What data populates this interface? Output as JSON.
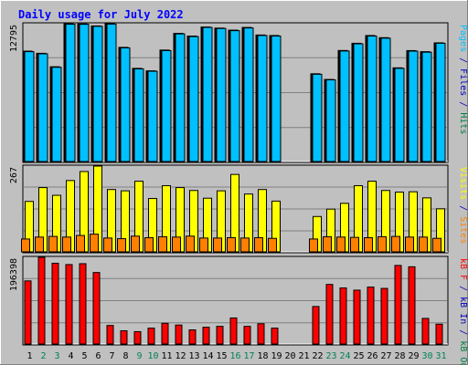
{
  "chart_data": {
    "type": "bar",
    "title": "Daily usage for July 2022",
    "days": [
      "1",
      "2",
      "3",
      "4",
      "5",
      "6",
      "7",
      "8",
      "9",
      "10",
      "11",
      "12",
      "13",
      "14",
      "15",
      "16",
      "17",
      "18",
      "19",
      "20",
      "21",
      "22",
      "23",
      "24",
      "25",
      "26",
      "27",
      "28",
      "29",
      "30",
      "31"
    ],
    "weekend_days": [
      "2",
      "3",
      "9",
      "10",
      "16",
      "17",
      "23",
      "24",
      "30",
      "31"
    ],
    "panels": [
      {
        "id": "hits-files-pages",
        "max_label": "12795",
        "ymax": 12795,
        "legend": [
          {
            "text": "Pages",
            "color": "#00c0ff"
          },
          {
            "text": " / ",
            "color": "#0000c0"
          },
          {
            "text": "Files",
            "color": "#0000c0"
          },
          {
            "text": " / ",
            "color": "#0000c0"
          },
          {
            "text": "Hits",
            "color": "#008040"
          }
        ],
        "series": [
          {
            "name": "Hits",
            "color": "#00a060",
            "values": [
              10250,
              10050,
              8800,
              12790,
              12780,
              12590,
              12800,
              10600,
              8650,
              8420,
              10350,
              11900,
              11650,
              12490,
              12390,
              12200,
              12450,
              11750,
              11700,
              0,
              0,
              8150,
              7620,
              10310,
              10980,
              11700,
              11500,
              8700,
              10300,
              10200,
              11020
            ]
          },
          {
            "name": "Files",
            "color": "#0000c0",
            "values": [
              10200,
              10000,
              8750,
              12750,
              12740,
              12550,
              12760,
              10550,
              8600,
              8380,
              10300,
              11850,
              11600,
              12450,
              12350,
              12150,
              12400,
              11700,
              11650,
              0,
              0,
              8100,
              7580,
              10260,
              10930,
              11650,
              11450,
              8650,
              10250,
              10150,
              10980
            ]
          },
          {
            "name": "Pages",
            "color": "#00c0ff",
            "values": [
              10200,
              10000,
              8750,
              12750,
              12740,
              12550,
              12760,
              10550,
              8600,
              8380,
              10300,
              11850,
              11600,
              12450,
              12350,
              12150,
              12400,
              11700,
              11650,
              0,
              0,
              8100,
              7580,
              10260,
              10930,
              11650,
              11450,
              8650,
              10250,
              10150,
              10980
            ]
          }
        ]
      },
      {
        "id": "visits-sites",
        "max_label": "267",
        "ymax": 267,
        "legend": [
          {
            "text": "Visits",
            "color": "#ffff00"
          },
          {
            "text": " / ",
            "color": "#0000c0"
          },
          {
            "text": "Sites",
            "color": "#ff8000"
          }
        ],
        "series": [
          {
            "name": "Visits",
            "color": "#ffff00",
            "values": [
              157,
              200,
              176,
              222,
              250,
              267,
              194,
              190,
              220,
              166,
              206,
              200,
              191,
              167,
              190,
              241,
              180,
              194,
              158,
              0,
              0,
              110,
              133,
              151,
              206,
              220,
              191,
              186,
              187,
              168,
              134
            ]
          },
          {
            "name": "Sites",
            "color": "#ff8000",
            "values": [
              40,
              46,
              48,
              46,
              51,
              55,
              43,
              41,
              49,
              44,
              47,
              46,
              49,
              43,
              43,
              44,
              43,
              44,
              42,
              0,
              0,
              40,
              47,
              46,
              45,
              44,
              47,
              48,
              46,
              46,
              42
            ]
          }
        ]
      },
      {
        "id": "kbin-kbout-kbf",
        "max_label": "196398",
        "ymax": 196398,
        "legend": [
          {
            "text": "kB F",
            "color": "#ff0000"
          },
          {
            "text": " / ",
            "color": "#0000c0"
          },
          {
            "text": "kB In",
            "color": "#0000c0"
          },
          {
            "text": " / ",
            "color": "#0000c0"
          },
          {
            "text": "kB Out",
            "color": "#008040"
          }
        ],
        "series": [
          {
            "name": "kB F",
            "color": "#ff0000",
            "values": [
              143000,
              196400,
              183000,
              180000,
              182000,
              162000,
              42000,
              30000,
              28000,
              36000,
              47000,
              43000,
              32000,
              38000,
              40000,
              59000,
              40000,
              46000,
              36000,
              0,
              0,
              85000,
              135000,
              127000,
              122000,
              129000,
              126000,
              178000,
              175000,
              58000,
              45000
            ]
          }
        ]
      }
    ]
  }
}
